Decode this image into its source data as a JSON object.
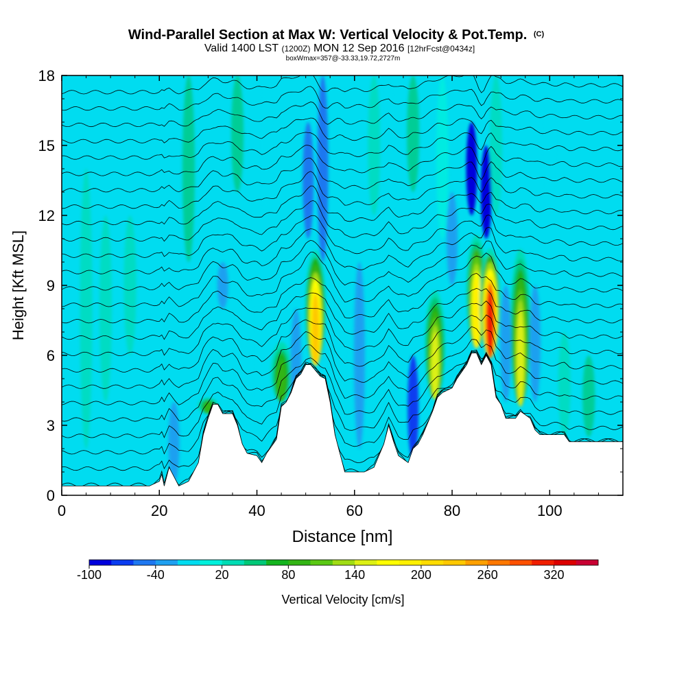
{
  "chart_data": {
    "type": "heatmap",
    "title": "Wind-Parallel Section at Max W: Vertical Velocity & Pot.Temp.",
    "title_mark": "(C)",
    "subtitle_parts": [
      "Valid 1400 LST",
      "(1200Z)",
      "MON 12 Sep 2016",
      "[12hrFcst@0434z]"
    ],
    "subtitle2": "boxWmax=357@-33.33,19.72,2727m",
    "xlabel": "Distance [nm]",
    "ylabel": "Height [Kft MSL]",
    "xlim": [
      0,
      115
    ],
    "ylim": [
      0,
      18
    ],
    "xticks": [
      0,
      20,
      40,
      60,
      80,
      100
    ],
    "yticks": [
      0,
      3,
      6,
      9,
      12,
      15,
      18
    ],
    "colorbar_label": "Vertical Velocity [cm/s]",
    "colorbar_range": [
      -100,
      360
    ],
    "colorbar_tick_values": [
      -100,
      -40,
      20,
      80,
      140,
      200,
      260,
      320
    ],
    "colorbar_tick_labels": [
      "-100",
      "-40",
      "20",
      "80",
      "140",
      "200",
      "260",
      "320"
    ],
    "colorbar_colors": [
      "#0000dc",
      "#0a3cf0",
      "#1e78f0",
      "#1ea0f0",
      "#00dcf0",
      "#00f0dc",
      "#00dcb4",
      "#00c878",
      "#14b41e",
      "#32b414",
      "#5ac814",
      "#a0dc14",
      "#dcf014",
      "#ffff00",
      "#fff000",
      "#ffdc00",
      "#ffc800",
      "#ffa000",
      "#ff7800",
      "#ff5000",
      "#f01e00",
      "#dc0000",
      "#c80032"
    ],
    "max_w_cms": 357,
    "max_w_location": "-33.33,19.72",
    "max_w_height_m": 2727,
    "terrain_profile": {
      "x": [
        0,
        18,
        20,
        20.5,
        21,
        22,
        24,
        26,
        28,
        29,
        30,
        31,
        32,
        33,
        35,
        36,
        37,
        38,
        40,
        41,
        42,
        44,
        45,
        46,
        47,
        48,
        49,
        50,
        51,
        53,
        54,
        55,
        56,
        58,
        60,
        62,
        64,
        66,
        67,
        68,
        69,
        71,
        72,
        73,
        74,
        75,
        76,
        77,
        78,
        80,
        81,
        82,
        83,
        84,
        85,
        86,
        87,
        88,
        89,
        90,
        91,
        93,
        94,
        96,
        97,
        98,
        100,
        102,
        103,
        104,
        106,
        110,
        113,
        115
      ],
      "terrain_kft": [
        0.4,
        0.4,
        0.6,
        0.9,
        0.4,
        1.2,
        0.4,
        0.6,
        1.4,
        2.6,
        3.3,
        3.9,
        3.9,
        3.5,
        3.5,
        3.0,
        2.2,
        1.8,
        1.7,
        1.4,
        1.8,
        2.4,
        3.8,
        4.0,
        4.4,
        5.0,
        5.2,
        5.6,
        5.6,
        5.1,
        5.0,
        4.0,
        2.6,
        1.0,
        1.0,
        1.0,
        1.2,
        2.2,
        3.0,
        2.3,
        1.7,
        1.4,
        2.0,
        2.2,
        2.6,
        3.1,
        3.6,
        4.2,
        4.4,
        4.6,
        5.0,
        5.3,
        5.6,
        6.1,
        6.1,
        5.6,
        6.0,
        5.6,
        4.2,
        3.9,
        3.3,
        3.3,
        3.6,
        3.3,
        2.8,
        2.6,
        2.6,
        2.6,
        2.6,
        2.3,
        2.3,
        2.3,
        2.3,
        2.3
      ]
    },
    "updraft_cores": [
      {
        "x_nm": 52,
        "z_kft": 7.8,
        "w_cms": 260
      },
      {
        "x_nm": 76.5,
        "z_kft": 6.2,
        "w_cms": 180
      },
      {
        "x_nm": 85,
        "z_kft": 8.5,
        "w_cms": 220
      },
      {
        "x_nm": 87.8,
        "z_kft": 8.0,
        "w_cms": 357
      },
      {
        "x_nm": 94,
        "z_kft": 7.0,
        "w_cms": 180
      },
      {
        "x_nm": 45,
        "z_kft": 5.0,
        "w_cms": 110
      },
      {
        "x_nm": 30,
        "z_kft": 3.5,
        "w_cms": 90
      }
    ],
    "isentrope_base_kft": [
      0.5,
      1.2,
      1.9,
      2.6,
      3.3,
      4.0,
      4.7,
      5.4,
      6.1,
      6.8,
      7.5,
      8.2,
      8.9,
      9.6,
      10.3,
      11.0,
      11.7,
      12.4,
      13.1,
      13.8,
      14.5,
      15.2,
      15.9,
      16.6,
      17.3
    ]
  }
}
